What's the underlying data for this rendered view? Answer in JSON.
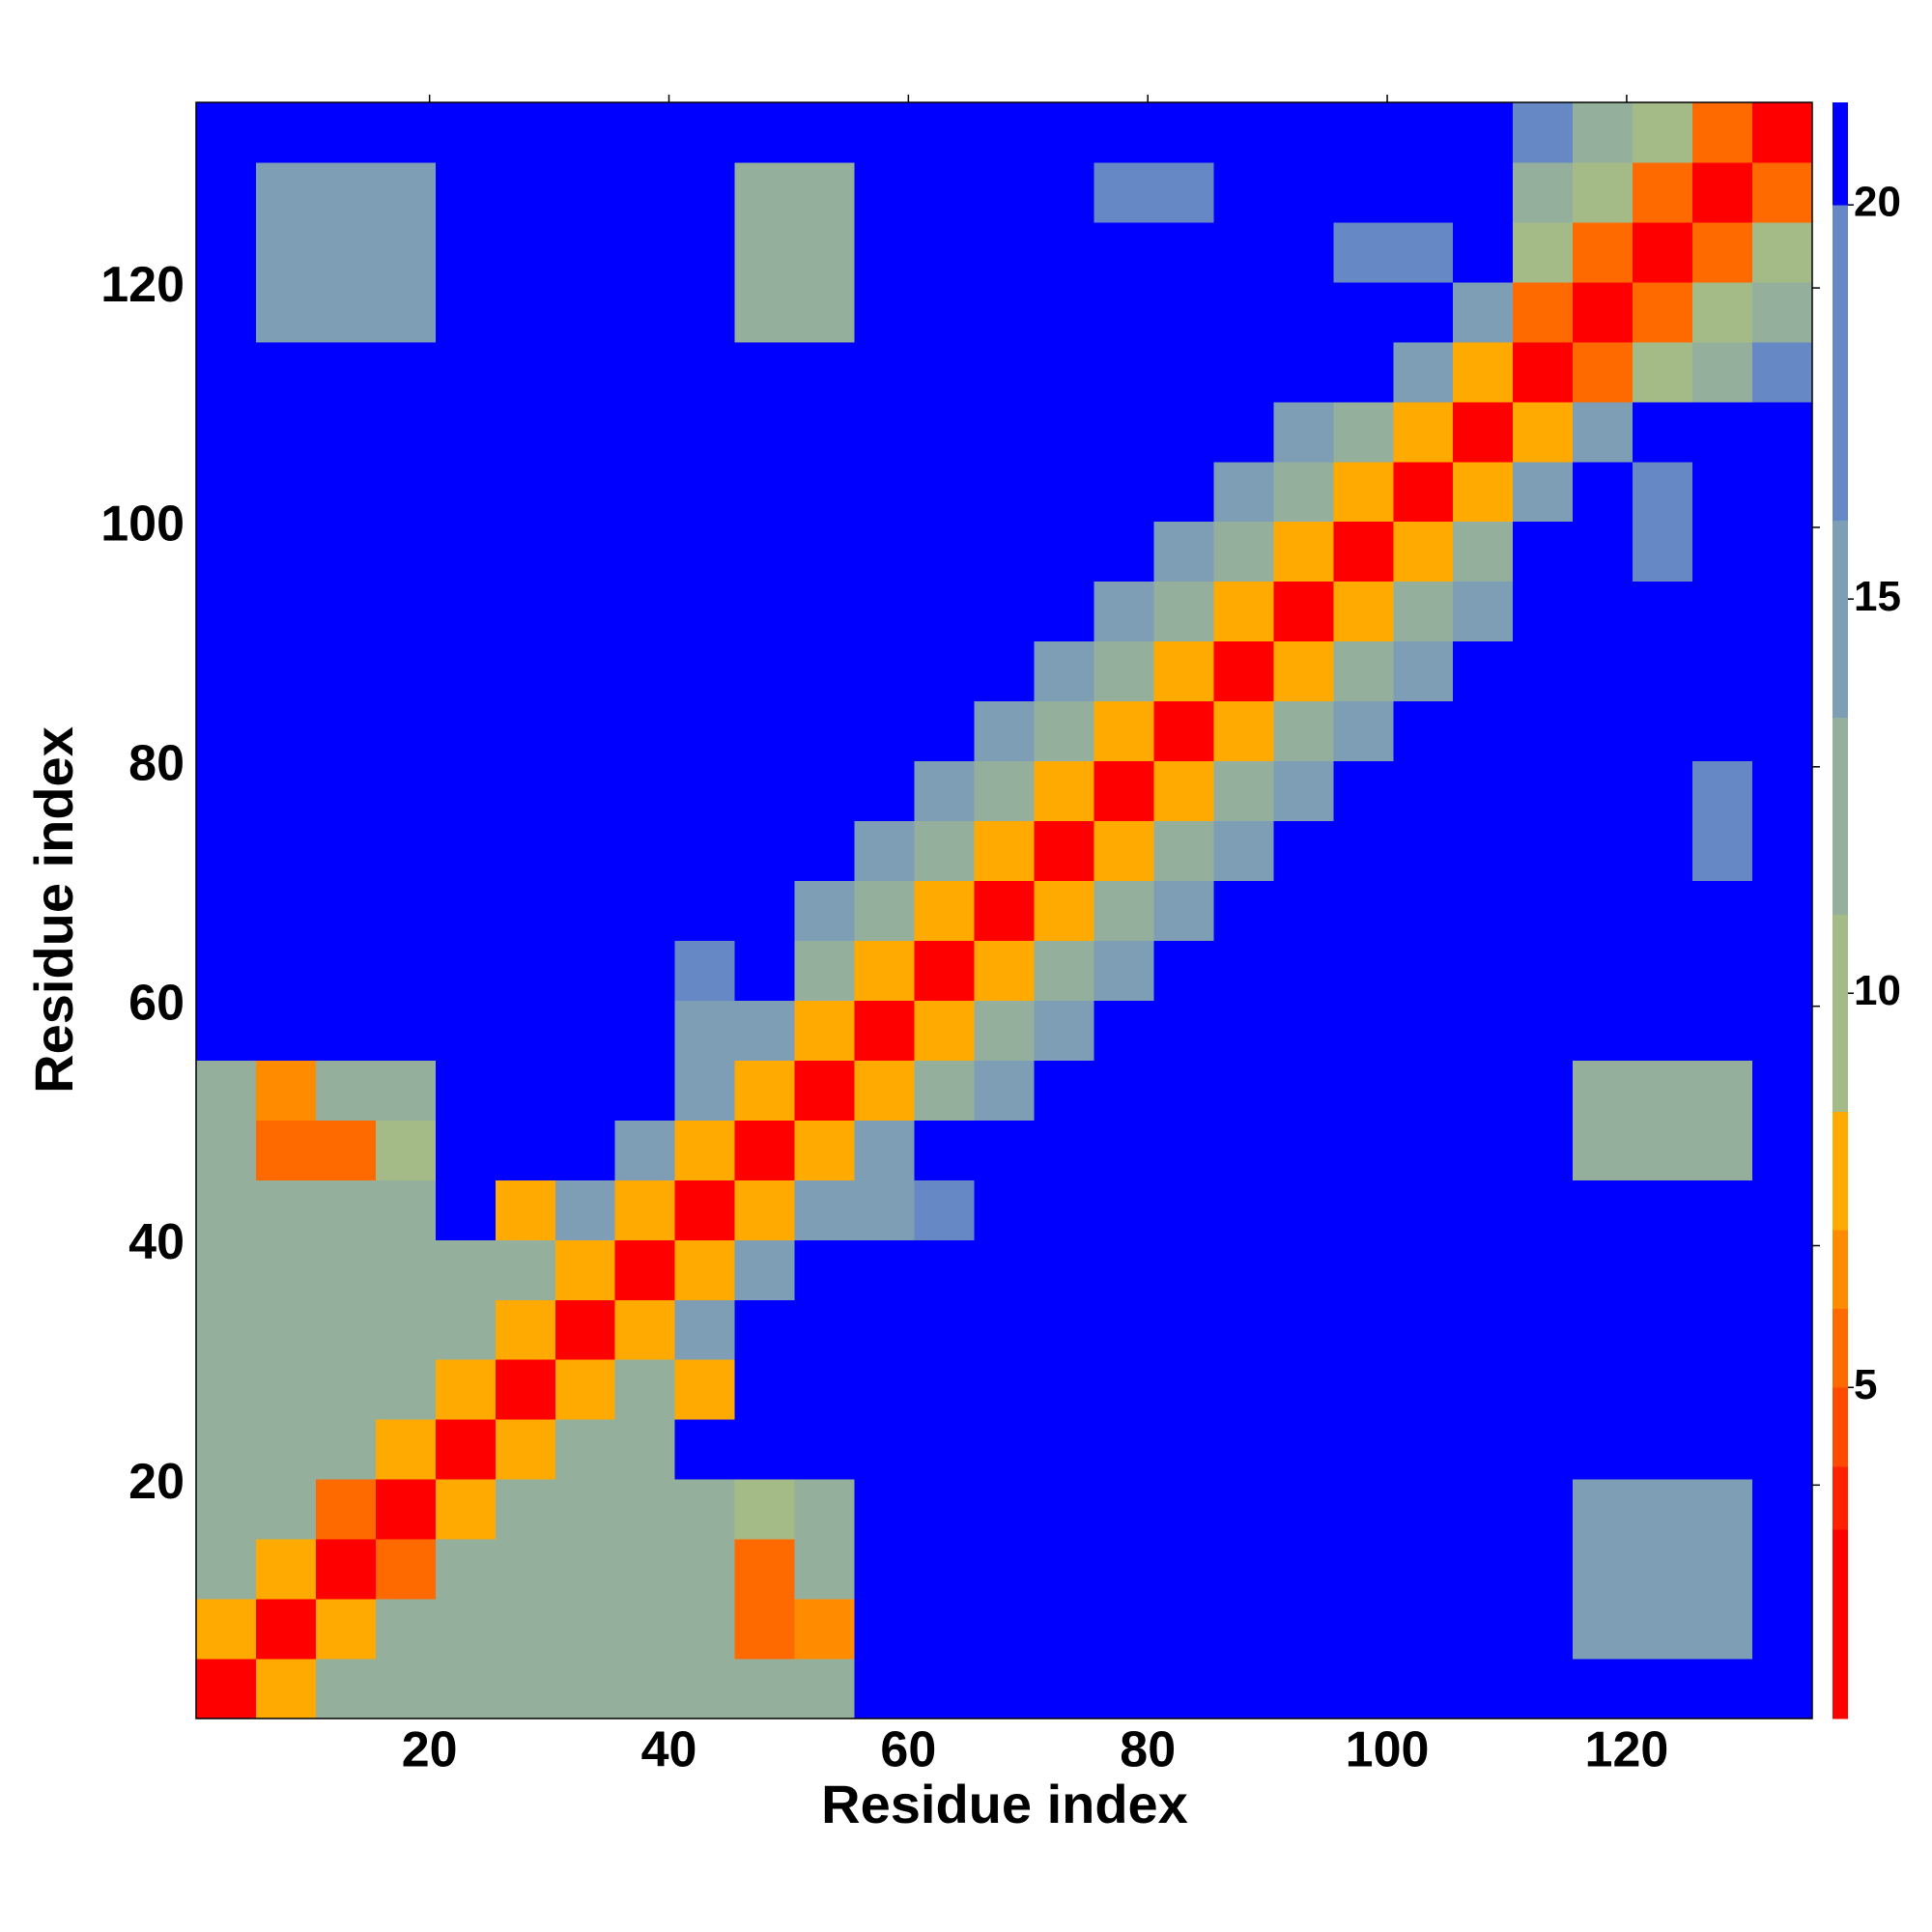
{
  "chart_data": {
    "type": "heatmap",
    "xlabel": "Residue index",
    "ylabel": "Residue index",
    "xlim": [
      0.5,
      135.5
    ],
    "ylim": [
      0.5,
      135.5
    ],
    "xticks": [
      20,
      40,
      60,
      80,
      100,
      120
    ],
    "yticks": [
      20,
      40,
      60,
      80,
      100,
      120
    ],
    "x": [
      3,
      8,
      13,
      18,
      23,
      28,
      33,
      38,
      43,
      48,
      53,
      58,
      63,
      68,
      73,
      78,
      83,
      88,
      93,
      98,
      103,
      108,
      113,
      118,
      123,
      128,
      133
    ],
    "y": [
      3,
      8,
      13,
      18,
      23,
      28,
      33,
      38,
      43,
      48,
      53,
      58,
      63,
      68,
      73,
      78,
      83,
      88,
      93,
      98,
      103,
      108,
      113,
      118,
      123,
      128,
      133
    ],
    "z": [
      [
        3,
        8,
        12,
        12,
        12,
        12,
        12,
        12,
        12,
        12,
        12,
        22,
        22,
        22,
        22,
        22,
        22,
        22,
        22,
        22,
        22,
        22,
        22,
        22,
        22,
        22,
        22
      ],
      [
        8,
        3,
        8,
        12,
        12,
        12,
        12,
        12,
        12,
        6,
        7,
        22,
        22,
        22,
        22,
        22,
        22,
        22,
        22,
        22,
        22,
        22,
        22,
        14,
        14,
        14,
        22
      ],
      [
        12,
        8,
        3,
        6,
        12,
        12,
        12,
        12,
        12,
        6,
        12,
        22,
        22,
        22,
        22,
        22,
        22,
        22,
        22,
        22,
        22,
        22,
        22,
        14,
        14,
        14,
        22
      ],
      [
        12,
        12,
        6,
        3,
        8,
        12,
        12,
        12,
        12,
        9,
        12,
        22,
        22,
        22,
        22,
        22,
        22,
        22,
        22,
        22,
        22,
        22,
        22,
        14,
        14,
        14,
        22
      ],
      [
        12,
        12,
        12,
        8,
        3,
        8,
        12,
        12,
        22,
        22,
        22,
        22,
        22,
        22,
        22,
        22,
        22,
        22,
        22,
        22,
        22,
        22,
        22,
        22,
        22,
        22,
        22
      ],
      [
        12,
        12,
        12,
        12,
        8,
        3,
        8,
        12,
        8,
        22,
        22,
        22,
        22,
        22,
        22,
        22,
        22,
        22,
        22,
        22,
        22,
        22,
        22,
        22,
        22,
        22,
        22
      ],
      [
        12,
        12,
        12,
        12,
        12,
        8,
        3,
        8,
        14,
        22,
        22,
        22,
        22,
        22,
        22,
        22,
        22,
        22,
        22,
        22,
        22,
        22,
        22,
        22,
        22,
        22,
        22
      ],
      [
        12,
        12,
        12,
        12,
        12,
        12,
        8,
        3,
        8,
        14,
        22,
        22,
        22,
        22,
        22,
        22,
        22,
        22,
        22,
        22,
        22,
        22,
        22,
        22,
        22,
        22,
        22
      ],
      [
        12,
        12,
        12,
        12,
        22,
        8,
        14,
        8,
        3,
        8,
        14,
        16,
        18,
        22,
        22,
        22,
        22,
        22,
        22,
        22,
        22,
        22,
        22,
        22,
        22,
        22,
        22
      ],
      [
        12,
        6,
        6,
        9,
        22,
        22,
        22,
        14,
        8,
        3,
        8,
        14,
        22,
        22,
        22,
        22,
        22,
        22,
        22,
        22,
        22,
        22,
        22,
        13,
        13,
        13,
        22
      ],
      [
        12,
        7,
        12,
        12,
        22,
        22,
        22,
        22,
        14,
        8,
        3,
        8,
        12,
        16,
        22,
        22,
        22,
        22,
        22,
        22,
        22,
        22,
        22,
        13,
        13,
        13,
        22
      ],
      [
        22,
        22,
        22,
        22,
        22,
        22,
        22,
        22,
        16,
        14,
        8,
        3,
        8,
        12,
        16,
        22,
        22,
        22,
        22,
        22,
        22,
        22,
        22,
        22,
        22,
        22,
        22
      ],
      [
        22,
        22,
        22,
        22,
        22,
        22,
        22,
        22,
        18,
        22,
        12,
        8,
        3,
        8,
        12,
        16,
        22,
        22,
        22,
        22,
        22,
        22,
        22,
        22,
        22,
        22,
        22
      ],
      [
        22,
        22,
        22,
        22,
        22,
        22,
        22,
        22,
        22,
        22,
        16,
        12,
        8,
        3,
        8,
        12,
        16,
        22,
        22,
        22,
        22,
        22,
        22,
        22,
        22,
        22,
        22
      ],
      [
        22,
        22,
        22,
        22,
        22,
        22,
        22,
        22,
        22,
        22,
        22,
        16,
        12,
        8,
        3,
        8,
        12,
        16,
        22,
        22,
        22,
        22,
        22,
        22,
        22,
        18,
        22
      ],
      [
        22,
        22,
        22,
        22,
        22,
        22,
        22,
        22,
        22,
        22,
        22,
        22,
        16,
        12,
        8,
        3,
        8,
        12,
        16,
        22,
        22,
        22,
        22,
        22,
        22,
        18,
        22
      ],
      [
        22,
        22,
        22,
        22,
        22,
        22,
        22,
        22,
        22,
        22,
        22,
        22,
        22,
        16,
        12,
        8,
        3,
        8,
        12,
        16,
        22,
        22,
        22,
        22,
        22,
        22,
        22
      ],
      [
        22,
        22,
        22,
        22,
        22,
        22,
        22,
        22,
        22,
        22,
        22,
        22,
        22,
        22,
        16,
        12,
        8,
        3,
        8,
        12,
        16,
        22,
        22,
        22,
        22,
        22,
        22
      ],
      [
        22,
        22,
        22,
        22,
        22,
        22,
        22,
        22,
        22,
        22,
        22,
        22,
        22,
        22,
        22,
        16,
        12,
        8,
        3,
        8,
        12,
        16,
        22,
        22,
        22,
        22,
        22
      ],
      [
        22,
        22,
        22,
        22,
        22,
        22,
        22,
        22,
        22,
        22,
        22,
        22,
        22,
        22,
        22,
        22,
        16,
        12,
        8,
        3,
        8,
        12,
        22,
        22,
        18,
        22,
        22
      ],
      [
        22,
        22,
        22,
        22,
        22,
        22,
        22,
        22,
        22,
        22,
        22,
        22,
        22,
        22,
        22,
        22,
        22,
        16,
        12,
        8,
        3,
        8,
        14,
        22,
        18,
        22,
        22
      ],
      [
        22,
        22,
        22,
        22,
        22,
        22,
        22,
        22,
        22,
        22,
        22,
        22,
        22,
        22,
        22,
        22,
        22,
        22,
        16,
        12,
        8,
        3,
        8,
        14,
        22,
        22,
        22
      ],
      [
        22,
        22,
        22,
        22,
        22,
        22,
        22,
        22,
        22,
        22,
        22,
        22,
        22,
        22,
        22,
        22,
        22,
        22,
        22,
        22,
        14,
        8,
        3,
        6,
        9,
        13,
        17
      ],
      [
        22,
        14,
        14,
        14,
        22,
        22,
        22,
        22,
        22,
        13,
        13,
        22,
        22,
        22,
        22,
        22,
        22,
        22,
        22,
        22,
        22,
        14,
        6,
        3,
        6,
        9,
        13
      ],
      [
        22,
        14,
        14,
        14,
        22,
        22,
        22,
        22,
        22,
        13,
        13,
        22,
        22,
        22,
        22,
        22,
        22,
        22,
        22,
        18,
        18,
        22,
        9,
        6,
        3,
        6,
        9
      ],
      [
        22,
        14,
        14,
        14,
        22,
        22,
        22,
        22,
        22,
        13,
        13,
        22,
        22,
        22,
        22,
        18,
        18,
        22,
        22,
        22,
        22,
        22,
        13,
        9,
        6,
        3,
        6
      ],
      [
        22,
        22,
        22,
        22,
        22,
        22,
        22,
        22,
        22,
        22,
        22,
        22,
        22,
        22,
        22,
        22,
        22,
        22,
        22,
        22,
        22,
        22,
        17,
        13,
        9,
        6,
        3
      ]
    ],
    "colorbar": {
      "levels": [
        0.8,
        3.2,
        4,
        5,
        6,
        7,
        8.5,
        11,
        13.5,
        16,
        20,
        21.3
      ],
      "colors": [
        "#ff0000",
        "#ff2200",
        "#ff4a00",
        "#ff6a00",
        "#ff8c00",
        "#ffaa00",
        "#a4bb88",
        "#94b09c",
        "#7d9eb4",
        "#6688c4",
        "#0000ff"
      ],
      "ticks": [
        5,
        10,
        15,
        20
      ]
    }
  }
}
